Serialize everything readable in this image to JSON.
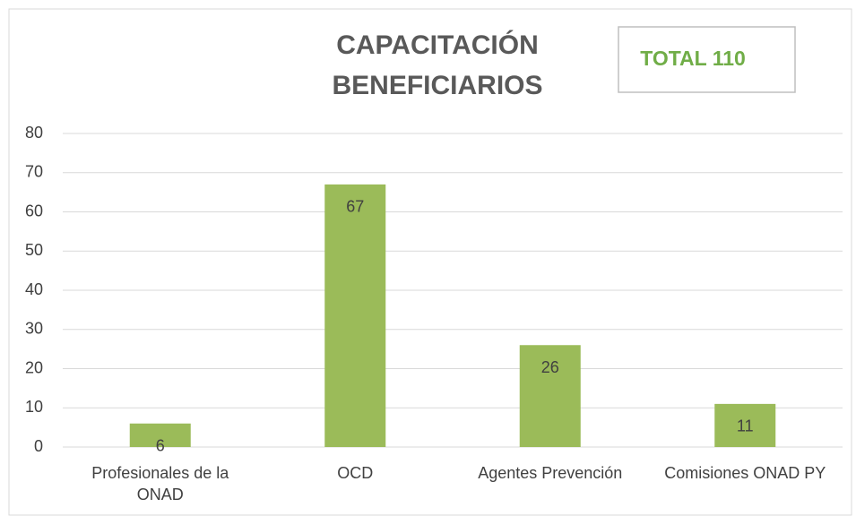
{
  "chart_data": {
    "type": "bar",
    "title": [
      "CAPACITACIÓN",
      "BENEFICIARIOS"
    ],
    "annotation": "TOTAL 110",
    "categories": [
      "Profesionales de la ONAD",
      "OCD",
      "Agentes Prevención",
      "Comisiones ONAD PY"
    ],
    "values": [
      6,
      67,
      26,
      11
    ],
    "color": "#9bbb59",
    "ylim": [
      0,
      80
    ],
    "yticks": [
      0,
      10,
      20,
      30,
      40,
      50,
      60,
      70,
      80
    ],
    "grid": true
  }
}
